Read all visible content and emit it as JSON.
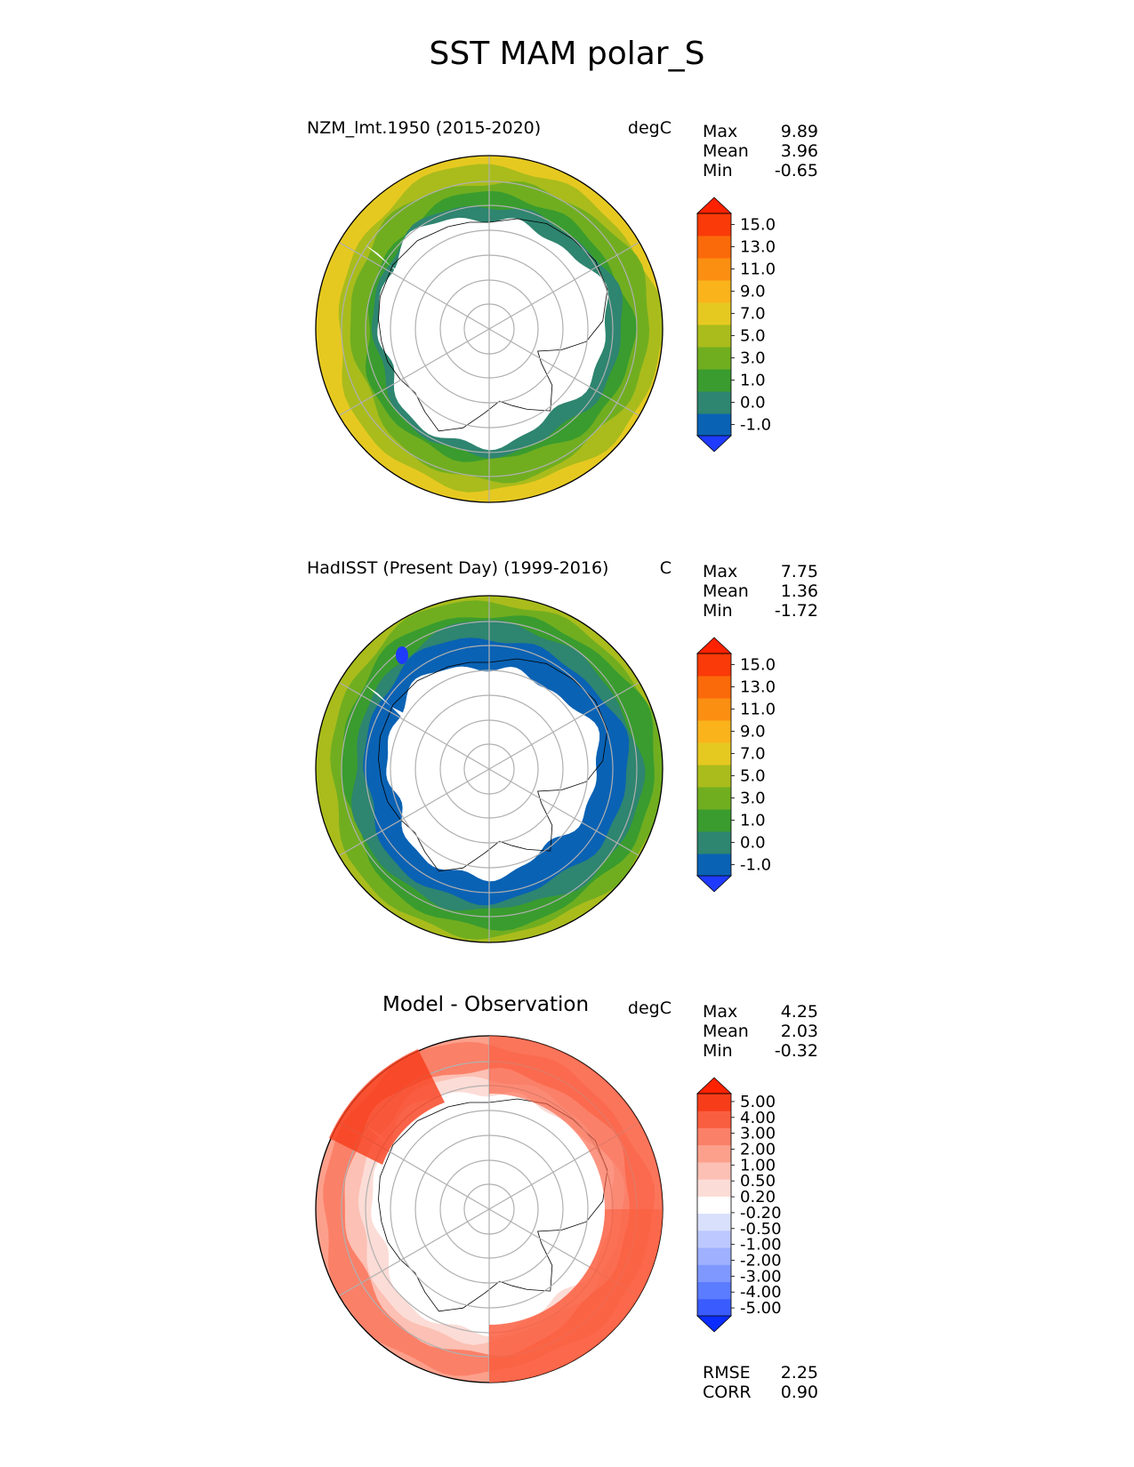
{
  "figure": {
    "title": "SST MAM polar_S"
  },
  "panels": [
    {
      "id": "model",
      "title": "NZM_lmt.1950 (2015-2020)",
      "units": "degC",
      "stats": [
        {
          "label": "Max",
          "value": "9.89"
        },
        {
          "label": "Mean",
          "value": "3.96"
        },
        {
          "label": "Min",
          "value": "-0.65"
        }
      ],
      "colorbar": {
        "ticks": [
          "15.0",
          "13.0",
          "11.0",
          "9.0",
          "7.0",
          "5.0",
          "3.0",
          "1.0",
          "0.0",
          "-1.0"
        ],
        "colors": [
          "#1f3bff",
          "#0a62b4",
          "#2e8570",
          "#3a9c2e",
          "#70ae20",
          "#a9bc1c",
          "#e6c920",
          "#fbb31c",
          "#fb8f12",
          "#fb6a0a",
          "#fa3a08",
          "#ff2200"
        ]
      }
    },
    {
      "id": "obs",
      "title": "HadISST (Present Day) (1999-2016)",
      "units": "C",
      "stats": [
        {
          "label": "Max",
          "value": "7.75"
        },
        {
          "label": "Mean",
          "value": "1.36"
        },
        {
          "label": "Min",
          "value": "-1.72"
        }
      ],
      "colorbar": {
        "ticks": [
          "15.0",
          "13.0",
          "11.0",
          "9.0",
          "7.0",
          "5.0",
          "3.0",
          "1.0",
          "0.0",
          "-1.0"
        ],
        "colors": [
          "#1f3bff",
          "#0a62b4",
          "#2e8570",
          "#3a9c2e",
          "#70ae20",
          "#a9bc1c",
          "#e6c920",
          "#fbb31c",
          "#fb8f12",
          "#fb6a0a",
          "#fa3a08",
          "#ff2200"
        ]
      }
    },
    {
      "id": "diff",
      "title": "Model - Observation",
      "units": "degC",
      "stats": [
        {
          "label": "Max",
          "value": "4.25"
        },
        {
          "label": "Mean",
          "value": "2.03"
        },
        {
          "label": "Min",
          "value": "-0.32"
        }
      ],
      "colorbar": {
        "ticks": [
          "5.00",
          "4.00",
          "3.00",
          "2.00",
          "1.00",
          "0.50",
          "0.20",
          "-0.20",
          "-0.50",
          "-1.00",
          "-2.00",
          "-3.00",
          "-4.00",
          "-5.00"
        ],
        "colors": [
          "#0a2cff",
          "#3a5cff",
          "#5c7cff",
          "#7f98ff",
          "#9eb0ff",
          "#bcc8ff",
          "#d9e0fb",
          "#ffffff",
          "#fcdcd6",
          "#fcc0b4",
          "#fca08c",
          "#fb8068",
          "#fa5e40",
          "#f73c1a",
          "#ff2200"
        ]
      },
      "metrics": [
        {
          "label": "RMSE",
          "value": "2.25"
        },
        {
          "label": "CORR",
          "value": "0.90"
        }
      ]
    }
  ]
}
